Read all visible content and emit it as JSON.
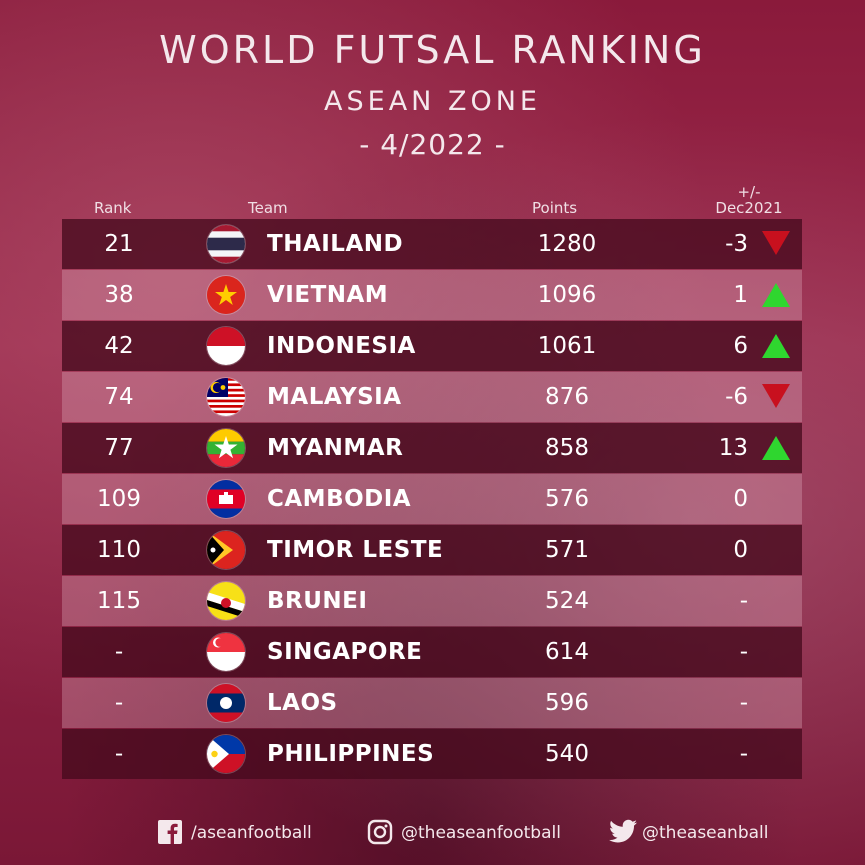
{
  "header": {
    "title": "WORLD FUTSAL RANKING",
    "subtitle": "ASEAN ZONE",
    "date": "- 4/2022 -"
  },
  "columns": {
    "rank": "Rank",
    "team": "Team",
    "points": "Points",
    "change_line1": "+/-",
    "change_line2": "Dec2021"
  },
  "rows": [
    {
      "rank": "21",
      "team": "THAILAND",
      "points": "1280",
      "change": "-3",
      "trend": "down"
    },
    {
      "rank": "38",
      "team": "VIETNAM",
      "points": "1096",
      "change": "1",
      "trend": "up"
    },
    {
      "rank": "42",
      "team": "INDONESIA",
      "points": "1061",
      "change": "6",
      "trend": "up"
    },
    {
      "rank": "74",
      "team": "MALAYSIA",
      "points": "876",
      "change": "-6",
      "trend": "down"
    },
    {
      "rank": "77",
      "team": "MYANMAR",
      "points": "858",
      "change": "13",
      "trend": "up"
    },
    {
      "rank": "109",
      "team": "CAMBODIA",
      "points": "576",
      "change": "0",
      "trend": "none"
    },
    {
      "rank": "110",
      "team": "TIMOR LESTE",
      "points": "571",
      "change": "0",
      "trend": "none"
    },
    {
      "rank": "115",
      "team": "BRUNEI",
      "points": "524",
      "change": "-",
      "trend": "none"
    },
    {
      "rank": "-",
      "team": "SINGAPORE",
      "points": "614",
      "change": "-",
      "trend": "none"
    },
    {
      "rank": "-",
      "team": "LAOS",
      "points": "596",
      "change": "-",
      "trend": "none"
    },
    {
      "rank": "-",
      "team": "PHILIPPINES",
      "points": "540",
      "change": "-",
      "trend": "none"
    }
  ],
  "footer": {
    "facebook": "/aseanfootball",
    "instagram": "@theaseanfootball",
    "twitter": "@theaseanball"
  },
  "colors": {
    "up": "#2fd62f",
    "down": "#c8101e"
  }
}
